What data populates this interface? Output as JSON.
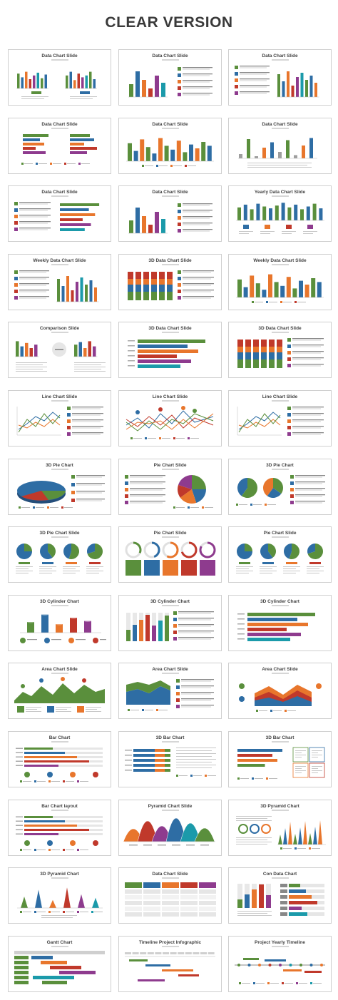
{
  "page": {
    "headline": "CLEAR VERSION"
  },
  "colors": {
    "green": "#5a8f3c",
    "blue": "#2e6da4",
    "orange": "#e8762c",
    "red": "#c0392b",
    "purple": "#8e3b8e",
    "teal": "#1b9aaa",
    "gray": "#9e9e9e",
    "yellow": "#f2b233"
  },
  "slides": [
    {
      "title": "Data Chart Slide",
      "kind": "bars-pair"
    },
    {
      "title": "Data Chart Slide",
      "kind": "bars-list"
    },
    {
      "title": "Data Chart Slide",
      "kind": "list-bars"
    },
    {
      "title": "Data Chart Slide",
      "kind": "hbars-pair"
    },
    {
      "title": "Data Chart Slide",
      "kind": "bars-grouped"
    },
    {
      "title": "Data Chart Slide",
      "kind": "bars-sparse"
    },
    {
      "title": "Data Chart Slide",
      "kind": "list-hbars"
    },
    {
      "title": "Data Chart Slide",
      "kind": "bars-list"
    },
    {
      "title": "Yearly Data Chart Slide",
      "kind": "bars-icons"
    },
    {
      "title": "Weekly Data Chart Slide",
      "kind": "list-bars"
    },
    {
      "title": "3D Data Chart Slide",
      "kind": "stack-list"
    },
    {
      "title": "Weekly Data Chart Slide",
      "kind": "bars-grouped"
    },
    {
      "title": "Comparison Slide",
      "kind": "comparison"
    },
    {
      "title": "3D Data Chart Slide",
      "kind": "hbars-3d"
    },
    {
      "title": "3D Data Chart Slide",
      "kind": "stack-list"
    },
    {
      "title": "Line Chart Slide",
      "kind": "line-list"
    },
    {
      "title": "Line Chart Slide",
      "kind": "line-multi"
    },
    {
      "title": "Line Chart Slide",
      "kind": "line-list"
    },
    {
      "title": "3D Pie Chart",
      "kind": "pie-3d"
    },
    {
      "title": "Pie Chart Slide",
      "kind": "list-pie"
    },
    {
      "title": "3D Pie Chart",
      "kind": "pies-pair"
    },
    {
      "title": "3D Pie Chart Slide",
      "kind": "pies-four"
    },
    {
      "title": "Pie Chart Slide",
      "kind": "rings"
    },
    {
      "title": "Pie Chart Slide",
      "kind": "pies-four"
    },
    {
      "title": "3D Cylinder Chart",
      "kind": "cylinders"
    },
    {
      "title": "3D Cylinder Chart",
      "kind": "cyl-list"
    },
    {
      "title": "3D Cylinder Chart",
      "kind": "hbars-3d"
    },
    {
      "title": "Area Chart Slide",
      "kind": "area-num"
    },
    {
      "title": "Area Chart Slide",
      "kind": "area-list"
    },
    {
      "title": "Area Chart Slide",
      "kind": "area-multi"
    },
    {
      "title": "Bar Chart",
      "kind": "hbars-long"
    },
    {
      "title": "3D Bar Chart",
      "kind": "hbars-list"
    },
    {
      "title": "3D Bar Chart",
      "kind": "hbars-boxes"
    },
    {
      "title": "Bar Chart layout",
      "kind": "hbars-long"
    },
    {
      "title": "Pyramid Chart Slide",
      "kind": "pyramids"
    },
    {
      "title": "3D Pyramid Chart",
      "kind": "pyr-bars"
    },
    {
      "title": "3D Pyramid Chart",
      "kind": "cones"
    },
    {
      "title": "Data Chart Slide",
      "kind": "table"
    },
    {
      "title": "Con Data Chart",
      "kind": "tubes"
    },
    {
      "title": "Gantt Chart",
      "kind": "gantt"
    },
    {
      "title": "Timeline Project Infographic",
      "kind": "timeline"
    },
    {
      "title": "Project Yearly Timeline",
      "kind": "timeline2"
    }
  ]
}
